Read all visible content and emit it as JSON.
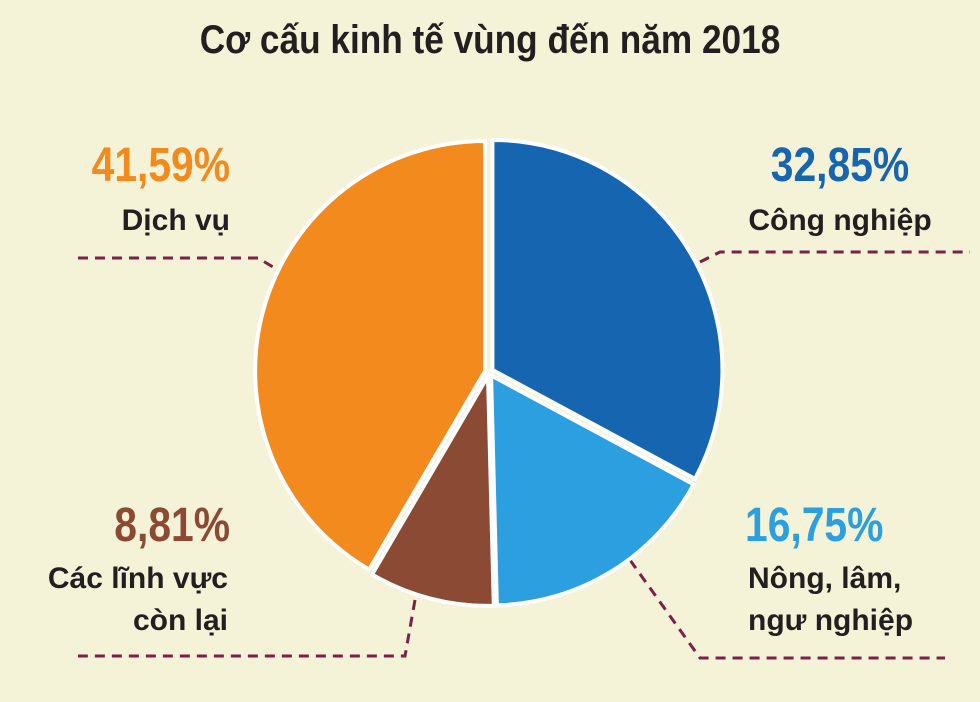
{
  "chart_data": {
    "type": "pie",
    "title": "Cơ cấu kinh tế vùng đến năm 2018",
    "categories": [
      "Công nghiệp",
      "Nông, lâm, ngư nghiệp",
      "Các lĩnh vực còn lại",
      "Dịch vụ"
    ],
    "values": [
      32.85,
      16.75,
      8.81,
      41.59
    ],
    "value_labels": [
      "32,85%",
      "16,75%",
      "8,81%",
      "41,59%"
    ],
    "colors": [
      "#1565b0",
      "#2b9fe0",
      "#8a4a33",
      "#f28a1e"
    ]
  }
}
